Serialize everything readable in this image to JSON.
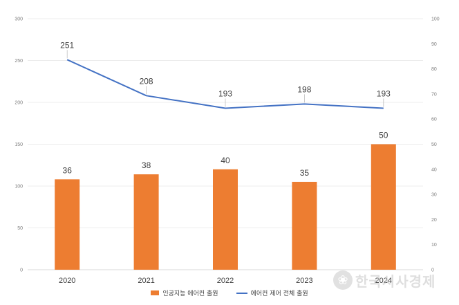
{
  "chart_data": {
    "type": "bar",
    "categories": [
      "2020",
      "2021",
      "2022",
      "2023",
      "2024"
    ],
    "series": [
      {
        "name": "인공지능 에어컨 출원",
        "kind": "bar",
        "axis": "right",
        "values": [
          36,
          38,
          40,
          35,
          50
        ],
        "color": "#ed7d31"
      },
      {
        "name": "에어컨 제어 전체 출원",
        "kind": "line",
        "axis": "left",
        "values": [
          251,
          208,
          193,
          198,
          193
        ],
        "color": "#4472c4"
      }
    ],
    "y_left": {
      "min": 0,
      "max": 300,
      "ticks": [
        "0",
        "50",
        "100",
        "150",
        "200",
        "250",
        "300"
      ]
    },
    "y_right": {
      "min": 0,
      "max": 100,
      "ticks": [
        "0",
        "10",
        "20",
        "30",
        "40",
        "50",
        "60",
        "70",
        "80",
        "90",
        "100"
      ]
    },
    "grid": true,
    "legend_position": "bottom"
  },
  "watermark": {
    "text": "한국시사경제"
  }
}
